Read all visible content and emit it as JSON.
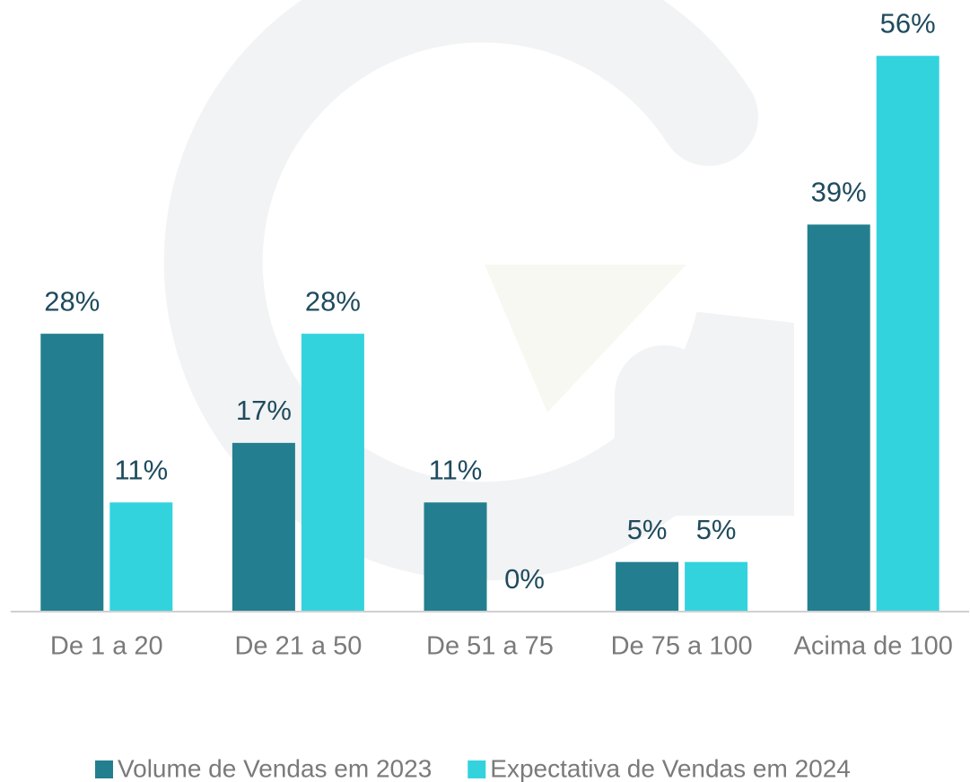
{
  "chart_data": {
    "type": "bar",
    "categories": [
      "De 1 a 20",
      "De 21 a 50",
      "De 51 a 75",
      "De 75 a 100",
      "Acima de 100"
    ],
    "series": [
      {
        "name": "Volume de Vendas em 2023",
        "color": "#237f8f",
        "values": [
          28,
          17,
          11,
          5,
          39
        ],
        "value_labels": [
          "28%",
          "17%",
          "11%",
          "5%",
          "39%"
        ]
      },
      {
        "name": "Expectativa de Vendas em 2024",
        "color": "#33d3de",
        "values": [
          11,
          28,
          0,
          5,
          56
        ],
        "value_labels": [
          "11%",
          "28%",
          "0%",
          "5%",
          "56%"
        ]
      }
    ],
    "ylim": [
      0,
      60
    ],
    "legend": "bottom"
  }
}
